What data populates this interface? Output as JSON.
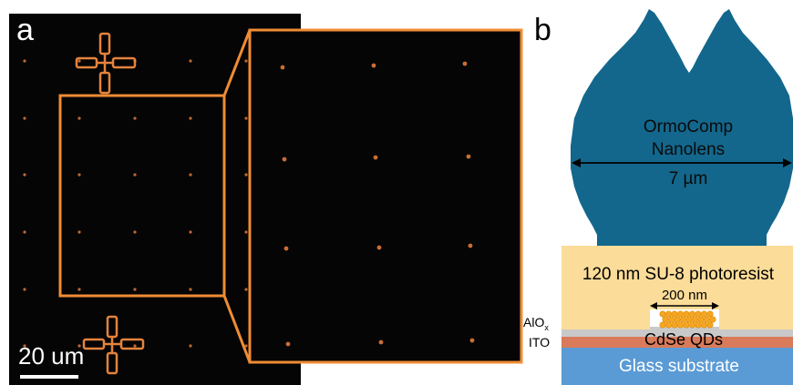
{
  "panel_a": {
    "label": "a",
    "scale_bar": {
      "text": "20 um"
    },
    "dot_color": "#e07a3a",
    "marker_color": "#f08a40"
  },
  "panel_b": {
    "label": "b",
    "lens": {
      "material": "OrmoComp",
      "name": "Nanolens",
      "width_label": "7 µm",
      "color": "#13678c"
    },
    "resist": {
      "label": "120 nm SU-8 photoresist",
      "color": "#fbdc98"
    },
    "gap": {
      "label": "200 nm"
    },
    "layers": {
      "alox": {
        "label": "AlO",
        "sub": "x",
        "color": "#c9c9c9"
      },
      "ito": {
        "label": "ITO",
        "color": "#d97b5a"
      },
      "qds": {
        "label": "CdSe QDs",
        "color": "#f5a623"
      },
      "glass": {
        "label": "Glass substrate",
        "color": "#5b9bd5"
      }
    }
  },
  "colors": {
    "highlight": "#f08c35",
    "background": "#000000"
  }
}
